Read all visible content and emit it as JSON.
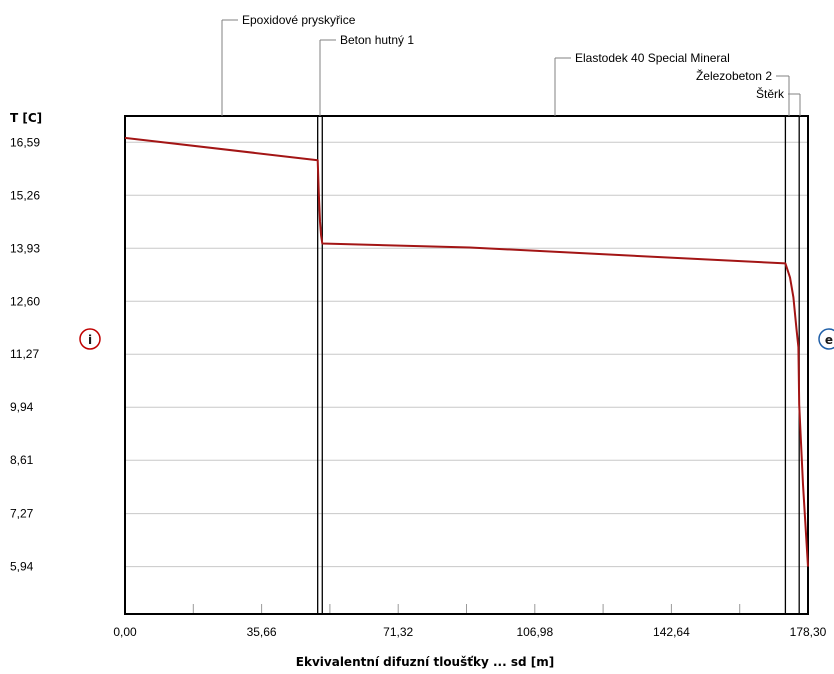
{
  "chart_data": {
    "type": "line",
    "ylabel": "T [C]",
    "xlabel": "Ekvivalentní difuzní tloušťky ... sd [m]",
    "x_ticks": [
      "0,00",
      "35,66",
      "71,32",
      "106,98",
      "142,64",
      "178,30"
    ],
    "y_ticks": [
      "16,59",
      "15,26",
      "13,93",
      "12,60",
      "11,27",
      "9,94",
      "8,61",
      "7,27",
      "5,94"
    ],
    "xlim": [
      0,
      178.3
    ],
    "ylim": [
      4.75,
      17.25
    ],
    "grid": true,
    "layers": [
      {
        "name": "Epoxidové pryskyřice",
        "x_start": 0,
        "x_end": 50.3
      },
      {
        "name": "Beton hutný 1",
        "x_start": 50.3,
        "x_end": 51.5
      },
      {
        "name": "Elastodek 40 Special Mineral",
        "x_start": 51.5,
        "x_end": 172.4
      },
      {
        "name": "Železobeton 2",
        "x_start": 172.4,
        "x_end": 176.0
      },
      {
        "name": "Štěrk",
        "x_start": 176.0,
        "x_end": 178.3
      }
    ],
    "boundaries": [
      50.3,
      51.5,
      172.4,
      176.0
    ],
    "series": [
      {
        "color": "#a31515",
        "x": [
          0,
          50.3,
          50.6,
          50.9,
          51.2,
          51.5,
          90,
          172.4,
          173.6,
          174.5,
          175.3,
          175.8,
          176.0,
          177.0,
          178.3
        ],
        "y": [
          16.7,
          16.14,
          15.3,
          14.6,
          14.25,
          14.05,
          13.95,
          13.55,
          13.2,
          12.7,
          11.9,
          11.45,
          10.0,
          8.0,
          5.94
        ]
      }
    ],
    "markers": {
      "inside": {
        "label": "i",
        "color": "#c00000"
      },
      "exterior": {
        "label": "e",
        "color": "#1f5fa8"
      }
    }
  }
}
